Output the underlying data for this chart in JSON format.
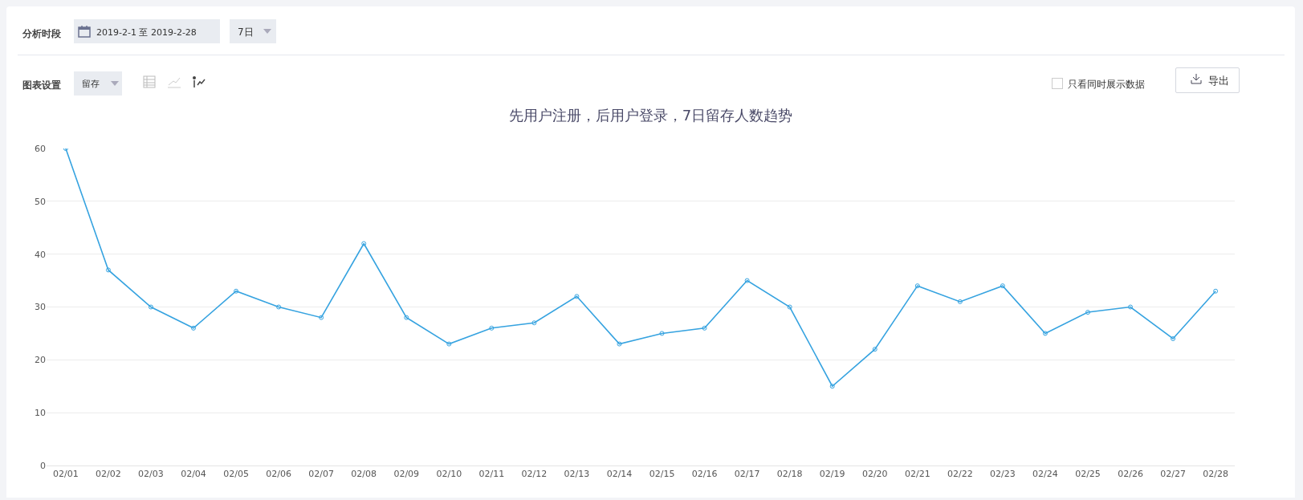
{
  "chart_data": {
    "type": "line",
    "title": "先用户注册，后用户登录，7日留存人数趋势",
    "categories": [
      "02/01",
      "02/02",
      "02/03",
      "02/04",
      "02/05",
      "02/06",
      "02/07",
      "02/08",
      "02/09",
      "02/10",
      "02/11",
      "02/12",
      "02/13",
      "02/14",
      "02/15",
      "02/16",
      "02/17",
      "02/18",
      "02/19",
      "02/20",
      "02/21",
      "02/22",
      "02/23",
      "02/24",
      "02/25",
      "02/26",
      "02/27",
      "02/28"
    ],
    "series": [
      {
        "color": "#36a3e0",
        "values": [
          60,
          37,
          30,
          26,
          33,
          30,
          28,
          42,
          28,
          23,
          26,
          27,
          32,
          23,
          25,
          26,
          35,
          30,
          15,
          22,
          34,
          31,
          34,
          25,
          29,
          30,
          24,
          33
        ]
      }
    ],
    "ylim": [
      0,
      60
    ],
    "yticks": [
      0,
      10,
      20,
      30,
      40,
      50,
      60
    ],
    "grid": "y",
    "legend": false,
    "marker": "circle",
    "line_style": "solid",
    "annotations": [
      "分析时段",
      "2019-2-1 至 2019-2-28",
      "7日",
      "图表设置",
      "留存",
      "只看同时展示数据",
      "导出"
    ]
  }
}
